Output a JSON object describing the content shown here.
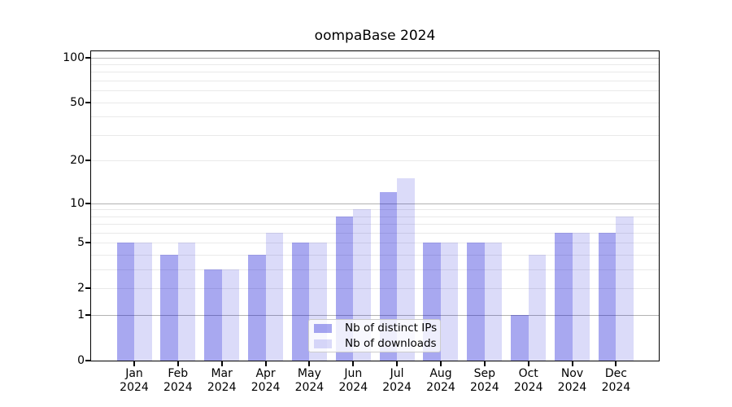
{
  "colors": {
    "bar_distinct_ips": "#a8a8f0",
    "bar_distinct_ips_rgba": "rgba(0,0,210,0.34)",
    "bar_downloads": "#dcdcf8",
    "bar_downloads_rgba": "rgba(0,0,210,0.14)",
    "major_gridline": "#b2b2b2",
    "minor_gridline": "#e9e9e9",
    "axis": "#000000",
    "legend_border": "#cccccc"
  },
  "chart_data": {
    "type": "bar",
    "title": "oompaBase 2024",
    "categories": [
      "Jan 2024",
      "Feb 2024",
      "Mar 2024",
      "Apr 2024",
      "May 2024",
      "Jun 2024",
      "Jul 2024",
      "Aug 2024",
      "Sep 2024",
      "Oct 2024",
      "Nov 2024",
      "Dec 2024"
    ],
    "series": [
      {
        "name": "Nb of distinct IPs",
        "color": "rgba(0,0,210,0.34)",
        "values": [
          5,
          4,
          3,
          4,
          5,
          8,
          12,
          5,
          5,
          1,
          6,
          6
        ]
      },
      {
        "name": "Nb of downloads",
        "color": "rgba(0,0,210,0.14)",
        "values": [
          5,
          5,
          3,
          6,
          5,
          9,
          15,
          5,
          5,
          4,
          6,
          8
        ]
      }
    ],
    "xlabel": "",
    "ylabel": "",
    "yscale": "log1p",
    "ylim": [
      0,
      110
    ],
    "y_ticks": [
      0,
      1,
      2,
      5,
      10,
      20,
      50,
      100
    ],
    "y_major_gridlines": [
      1,
      10,
      100
    ],
    "y_minor_gridlines": [
      2,
      3,
      4,
      5,
      6,
      7,
      8,
      9,
      20,
      30,
      40,
      50,
      60,
      70,
      80,
      90
    ],
    "grid": "on",
    "legend_position": "lower center"
  }
}
